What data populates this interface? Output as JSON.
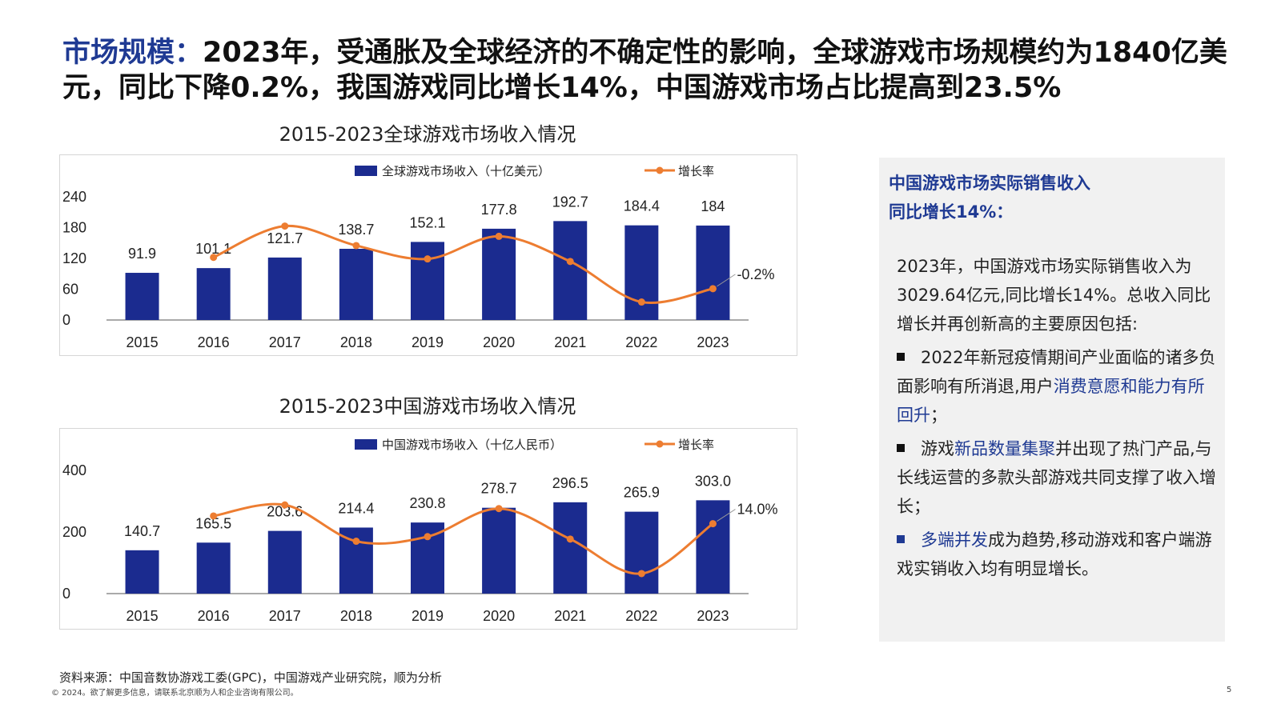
{
  "headline": {
    "label": "市场规模：",
    "text": "2023年，受通胀及全球经济的不确定性的影响，全球游戏市场规模约为1840亿美元，同比下降0.2%，我国游戏同比增长14%，中国游戏市场占比提高到23.5%"
  },
  "chart_data": [
    {
      "type": "bar",
      "title": "2015-2023全球游戏市场收入情况",
      "categories": [
        "2015",
        "2016",
        "2017",
        "2018",
        "2019",
        "2020",
        "2021",
        "2022",
        "2023"
      ],
      "series": [
        {
          "name": "全球游戏市场收入（十亿美元）",
          "type": "bar",
          "values": [
            91.9,
            101.1,
            121.7,
            138.7,
            152.1,
            177.8,
            192.7,
            184.4,
            184
          ]
        },
        {
          "name": "增长率",
          "type": "line",
          "values": [
            null,
            122,
            183,
            145,
            119,
            163,
            114,
            35,
            61
          ]
        }
      ],
      "value_labels": [
        "91.9",
        "101.1",
        "121.7",
        "138.7",
        "152.1",
        "177.8",
        "192.7",
        "184.4",
        "184"
      ],
      "yticks": [
        "0",
        "60",
        "120",
        "180",
        "240"
      ],
      "ylim": [
        0,
        240
      ],
      "last_rate_label": "-0.2%",
      "legend_position": "top",
      "colors": {
        "bar": "#1b2b8f",
        "line": "#ed7d31"
      }
    },
    {
      "type": "bar",
      "title": "2015-2023中国游戏市场收入情况",
      "categories": [
        "2015",
        "2016",
        "2017",
        "2018",
        "2019",
        "2020",
        "2021",
        "2022",
        "2023"
      ],
      "series": [
        {
          "name": "中国游戏市场收入（十亿人民币）",
          "type": "bar",
          "values": [
            140.7,
            165.5,
            203.6,
            214.4,
            230.8,
            278.7,
            296.5,
            265.9,
            303.0
          ]
        },
        {
          "name": "增长率",
          "type": "line",
          "values": [
            null,
            252,
            288,
            170,
            185,
            276,
            177,
            65,
            227
          ]
        }
      ],
      "value_labels": [
        "140.7",
        "165.5",
        "203.6",
        "214.4",
        "230.8",
        "278.7",
        "296.5",
        "265.9",
        "303.0"
      ],
      "yticks": [
        "0",
        "200",
        "400"
      ],
      "ylim": [
        0,
        400
      ],
      "last_rate_label": "14.0%",
      "legend_position": "top",
      "colors": {
        "bar": "#1b2b8f",
        "line": "#ed7d31"
      }
    }
  ],
  "panel": {
    "heading_line1": "中国游戏市场实际销售收入",
    "heading_line2": "同比增长14%：",
    "intro": "2023年，中国游戏市场实际销售收入为3029.64亿元,同比增长14%。总收入同比增长并再创新高的主要原因包括:",
    "bullet1_pre": "2022年新冠疫情期间产业面临的诸多负面影响有所消退,用户",
    "bullet1_hl": "消费意愿和能力有所回升",
    "bullet1_post": "；",
    "bullet2_pre": "游戏",
    "bullet2_hl": "新品数量集聚",
    "bullet2_post": "并出现了热门产品,与长线运营的多款头部游戏共同支撑了收入增长；",
    "bullet3_hl": "多端并发",
    "bullet3_post": "成为趋势,移动游戏和客户端游戏实销收入均有明显增长。"
  },
  "footnote": "资料来源：中国音数协游戏工委(GPC)，中国游戏产业研究院，顺为分析",
  "copyright": "© 2024。欲了解更多信息，请联系北京顺为人和企业咨询有限公司。",
  "page_number": "5"
}
